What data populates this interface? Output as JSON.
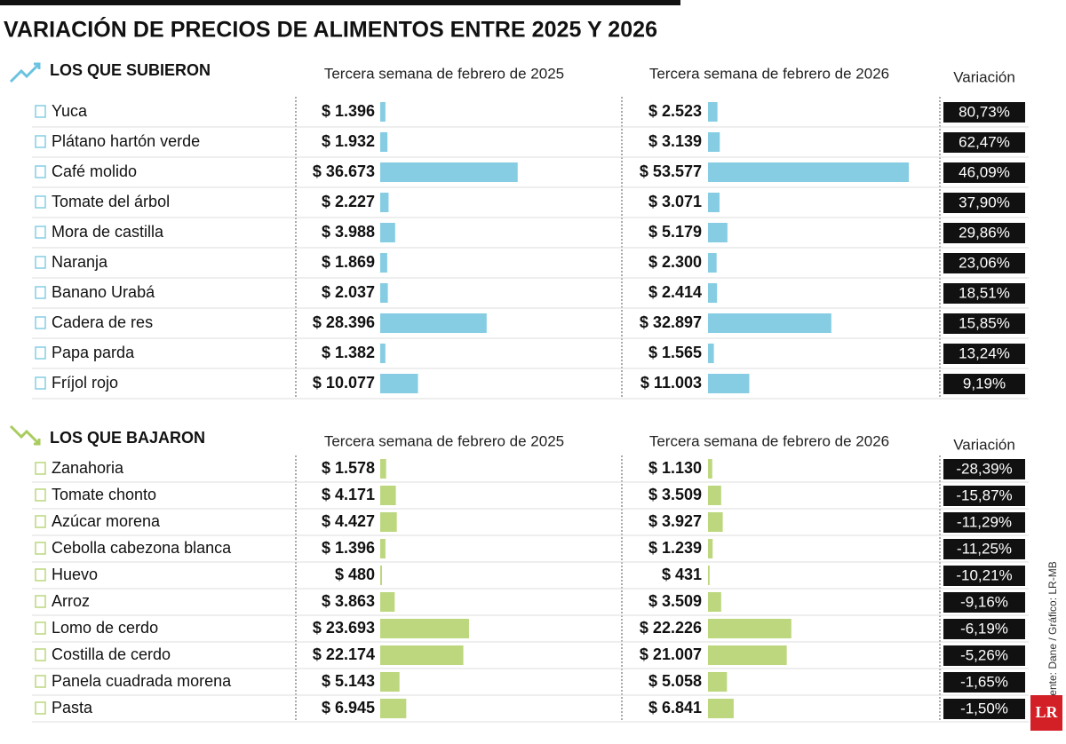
{
  "chart_data": {
    "type": "table-bar",
    "title": "VARIACIÓN DE PRECIOS DE ALIMENTOS ENTRE 2025 Y 2026",
    "source": "Fuente: Dane / Gráfico: LR-MB",
    "logo": "LR",
    "sections": [
      {
        "heading": "LOS QUE SUBIERON",
        "col_2025": "Tercera semana de febrero de 2025",
        "col_2026": "Tercera semana de febrero de 2026",
        "col_var": "Variación",
        "color": "#86cde3",
        "rows": [
          {
            "name": "Yuca",
            "v2025": {
              "value": 1396,
              "label": "$ 1.396"
            },
            "v2026": {
              "value": 2523,
              "label": "$ 2.523"
            },
            "var": {
              "value": 80.73,
              "label": "80,73%"
            }
          },
          {
            "name": "Plátano hartón verde",
            "v2025": {
              "value": 1932,
              "label": "$ 1.932"
            },
            "v2026": {
              "value": 3139,
              "label": "$ 3.139"
            },
            "var": {
              "value": 62.47,
              "label": "62,47%"
            }
          },
          {
            "name": "Café molido",
            "v2025": {
              "value": 36673,
              "label": "$ 36.673"
            },
            "v2026": {
              "value": 53577,
              "label": "$ 53.577"
            },
            "var": {
              "value": 46.09,
              "label": "46,09%"
            }
          },
          {
            "name": "Tomate del árbol",
            "v2025": {
              "value": 2227,
              "label": "$ 2.227"
            },
            "v2026": {
              "value": 3071,
              "label": "$ 3.071"
            },
            "var": {
              "value": 37.9,
              "label": "37,90%"
            }
          },
          {
            "name": "Mora de castilla",
            "v2025": {
              "value": 3988,
              "label": "$ 3.988"
            },
            "v2026": {
              "value": 5179,
              "label": "$ 5.179"
            },
            "var": {
              "value": 29.86,
              "label": "29,86%"
            }
          },
          {
            "name": "Naranja",
            "v2025": {
              "value": 1869,
              "label": "$ 1.869"
            },
            "v2026": {
              "value": 2300,
              "label": "$ 2.300"
            },
            "var": {
              "value": 23.06,
              "label": "23,06%"
            }
          },
          {
            "name": "Banano Urabá",
            "v2025": {
              "value": 2037,
              "label": "$ 2.037"
            },
            "v2026": {
              "value": 2414,
              "label": "$ 2.414"
            },
            "var": {
              "value": 18.51,
              "label": "18,51%"
            }
          },
          {
            "name": "Cadera de res",
            "v2025": {
              "value": 28396,
              "label": "$ 28.396"
            },
            "v2026": {
              "value": 32897,
              "label": "$ 32.897"
            },
            "var": {
              "value": 15.85,
              "label": "15,85%"
            }
          },
          {
            "name": "Papa parda",
            "v2025": {
              "value": 1382,
              "label": "$ 1.382"
            },
            "v2026": {
              "value": 1565,
              "label": "$ 1.565"
            },
            "var": {
              "value": 13.24,
              "label": "13,24%"
            }
          },
          {
            "name": "Fríjol rojo",
            "v2025": {
              "value": 10077,
              "label": "$ 10.077"
            },
            "v2026": {
              "value": 11003,
              "label": "$ 11.003"
            },
            "var": {
              "value": 9.19,
              "label": "9,19%"
            }
          }
        ]
      },
      {
        "heading": "LOS QUE BAJARON",
        "col_2025": "Tercera semana de febrero de 2025",
        "col_2026": "Tercera semana de febrero de 2026",
        "col_var": "Variación",
        "color": "#bcd77e",
        "rows": [
          {
            "name": "Zanahoria",
            "v2025": {
              "value": 1578,
              "label": "$ 1.578"
            },
            "v2026": {
              "value": 1130,
              "label": "$ 1.130"
            },
            "var": {
              "value": -28.39,
              "label": "-28,39%"
            }
          },
          {
            "name": "Tomate chonto",
            "v2025": {
              "value": 4171,
              "label": "$ 4.171"
            },
            "v2026": {
              "value": 3509,
              "label": "$ 3.509"
            },
            "var": {
              "value": -15.87,
              "label": "-15,87%"
            }
          },
          {
            "name": "Azúcar morena",
            "v2025": {
              "value": 4427,
              "label": "$ 4.427"
            },
            "v2026": {
              "value": 3927,
              "label": "$ 3.927"
            },
            "var": {
              "value": -11.29,
              "label": "-11,29%"
            }
          },
          {
            "name": "Cebolla cabezona blanca",
            "v2025": {
              "value": 1396,
              "label": "$ 1.396"
            },
            "v2026": {
              "value": 1239,
              "label": "$ 1.239"
            },
            "var": {
              "value": -11.25,
              "label": "-11,25%"
            }
          },
          {
            "name": "Huevo",
            "v2025": {
              "value": 480,
              "label": "$ 480"
            },
            "v2026": {
              "value": 431,
              "label": "$ 431"
            },
            "var": {
              "value": -10.21,
              "label": "-10,21%"
            }
          },
          {
            "name": "Arroz",
            "v2025": {
              "value": 3863,
              "label": "$ 3.863"
            },
            "v2026": {
              "value": 3509,
              "label": "$ 3.509"
            },
            "var": {
              "value": -9.16,
              "label": "-9,16%"
            }
          },
          {
            "name": "Lomo de cerdo",
            "v2025": {
              "value": 23693,
              "label": "$ 23.693"
            },
            "v2026": {
              "value": 22226,
              "label": "$ 22.226"
            },
            "var": {
              "value": -6.19,
              "label": "-6,19%"
            }
          },
          {
            "name": "Costilla de cerdo",
            "v2025": {
              "value": 22174,
              "label": "$ 22.174"
            },
            "v2026": {
              "value": 21007,
              "label": "$ 21.007"
            },
            "var": {
              "value": -5.26,
              "label": "-5,26%"
            }
          },
          {
            "name": "Panela cuadrada morena",
            "v2025": {
              "value": 5143,
              "label": "$ 5.143"
            },
            "v2026": {
              "value": 5058,
              "label": "$ 5.058"
            },
            "var": {
              "value": -1.65,
              "label": "-1,65%"
            }
          },
          {
            "name": "Pasta",
            "v2025": {
              "value": 6945,
              "label": "$ 6.945"
            },
            "v2026": {
              "value": 6841,
              "label": "$ 6.841"
            },
            "var": {
              "value": -1.5,
              "label": "-1,50%"
            }
          }
        ]
      }
    ]
  }
}
